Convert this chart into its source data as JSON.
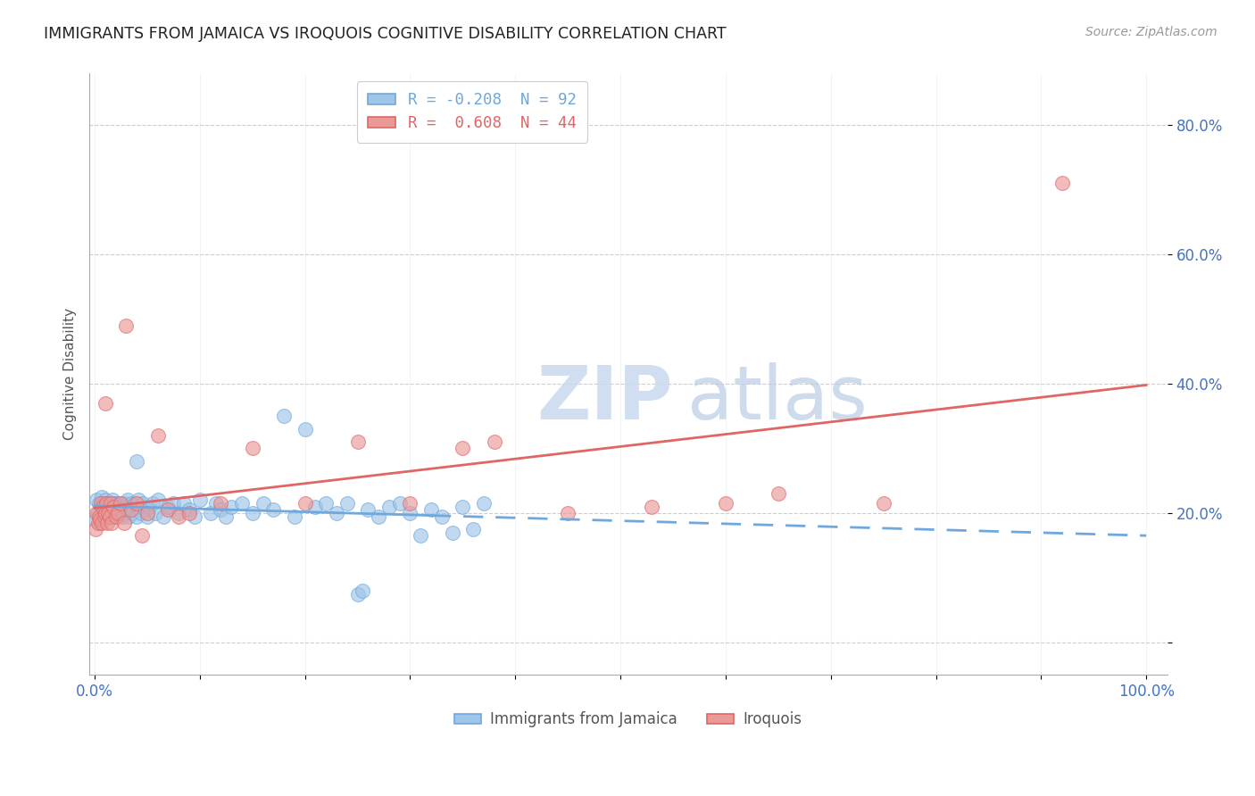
{
  "title": "IMMIGRANTS FROM JAMAICA VS IROQUOIS COGNITIVE DISABILITY CORRELATION CHART",
  "source": "Source: ZipAtlas.com",
  "ylabel": "Cognitive Disability",
  "color_blue": "#9fc5e8",
  "color_blue_edge": "#6fa8dc",
  "color_pink": "#ea9999",
  "color_pink_edge": "#e06666",
  "color_blue_line": "#6fa8dc",
  "color_pink_line": "#e06666",
  "color_axis_label": "#4472c4",
  "watermark_zip_color": "#c9d9ef",
  "watermark_atlas_color": "#b8cce4",
  "yticks": [
    0.0,
    0.2,
    0.4,
    0.6,
    0.8
  ],
  "ytick_labels": [
    "",
    "20.0%",
    "40.0%",
    "60.0%",
    "80.0%"
  ],
  "legend1_label": "R = -0.208  N = 92",
  "legend2_label": "R =  0.608  N = 44",
  "bottom_legend1": "Immigrants from Jamaica",
  "bottom_legend2": "Iroquois",
  "jamaica_x": [
    0.001,
    0.002,
    0.003,
    0.004,
    0.005,
    0.006,
    0.007,
    0.007,
    0.008,
    0.009,
    0.01,
    0.01,
    0.011,
    0.011,
    0.012,
    0.012,
    0.013,
    0.014,
    0.015,
    0.015,
    0.016,
    0.016,
    0.017,
    0.018,
    0.018,
    0.019,
    0.02,
    0.02,
    0.021,
    0.022,
    0.023,
    0.024,
    0.025,
    0.026,
    0.027,
    0.028,
    0.03,
    0.031,
    0.032,
    0.034,
    0.035,
    0.036,
    0.038,
    0.04,
    0.042,
    0.044,
    0.046,
    0.048,
    0.05,
    0.052,
    0.055,
    0.058,
    0.06,
    0.065,
    0.07,
    0.075,
    0.08,
    0.085,
    0.09,
    0.095,
    0.1,
    0.11,
    0.115,
    0.12,
    0.125,
    0.13,
    0.14,
    0.15,
    0.16,
    0.17,
    0.18,
    0.19,
    0.2,
    0.21,
    0.22,
    0.23,
    0.24,
    0.25,
    0.26,
    0.27,
    0.28,
    0.29,
    0.3,
    0.31,
    0.32,
    0.33,
    0.34,
    0.35,
    0.36,
    0.37,
    0.04,
    0.255
  ],
  "jamaica_y": [
    0.19,
    0.22,
    0.2,
    0.215,
    0.185,
    0.21,
    0.225,
    0.205,
    0.195,
    0.215,
    0.21,
    0.22,
    0.2,
    0.215,
    0.205,
    0.195,
    0.215,
    0.21,
    0.2,
    0.215,
    0.205,
    0.195,
    0.22,
    0.21,
    0.2,
    0.215,
    0.205,
    0.195,
    0.215,
    0.21,
    0.2,
    0.215,
    0.205,
    0.195,
    0.21,
    0.215,
    0.2,
    0.22,
    0.195,
    0.21,
    0.215,
    0.2,
    0.215,
    0.195,
    0.22,
    0.2,
    0.215,
    0.205,
    0.195,
    0.21,
    0.215,
    0.2,
    0.22,
    0.195,
    0.21,
    0.215,
    0.2,
    0.215,
    0.205,
    0.195,
    0.22,
    0.2,
    0.215,
    0.205,
    0.195,
    0.21,
    0.215,
    0.2,
    0.215,
    0.205,
    0.35,
    0.195,
    0.33,
    0.21,
    0.215,
    0.2,
    0.215,
    0.075,
    0.205,
    0.195,
    0.21,
    0.215,
    0.2,
    0.165,
    0.205,
    0.195,
    0.17,
    0.21,
    0.175,
    0.215,
    0.28,
    0.08
  ],
  "iroquois_x": [
    0.001,
    0.002,
    0.003,
    0.004,
    0.005,
    0.006,
    0.007,
    0.008,
    0.009,
    0.01,
    0.011,
    0.012,
    0.013,
    0.014,
    0.015,
    0.016,
    0.018,
    0.02,
    0.022,
    0.025,
    0.028,
    0.03,
    0.035,
    0.04,
    0.045,
    0.05,
    0.06,
    0.07,
    0.08,
    0.09,
    0.12,
    0.15,
    0.2,
    0.25,
    0.3,
    0.35,
    0.38,
    0.45,
    0.53,
    0.6,
    0.65,
    0.75,
    0.92,
    0.01
  ],
  "iroquois_y": [
    0.175,
    0.2,
    0.185,
    0.195,
    0.19,
    0.215,
    0.185,
    0.21,
    0.195,
    0.2,
    0.215,
    0.185,
    0.2,
    0.195,
    0.215,
    0.185,
    0.21,
    0.195,
    0.2,
    0.215,
    0.185,
    0.49,
    0.205,
    0.215,
    0.165,
    0.2,
    0.32,
    0.205,
    0.195,
    0.2,
    0.215,
    0.3,
    0.215,
    0.31,
    0.215,
    0.3,
    0.31,
    0.2,
    0.21,
    0.215,
    0.23,
    0.215,
    0.71,
    0.37
  ]
}
